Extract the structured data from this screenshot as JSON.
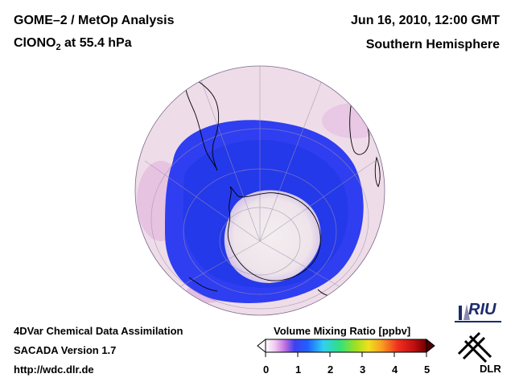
{
  "header": {
    "title_line1": "GOME–2 / MetOp Analysis",
    "species_prefix": "ClONO",
    "species_sub": "2",
    "species_suffix": " at 55.4 hPa",
    "datetime": "Jun 16, 2010, 12:00 GMT",
    "region": "Southern Hemisphere"
  },
  "footer": {
    "line1": "4DVar Chemical Data Assimilation",
    "line2": "SACADA Version 1.7",
    "line3": "http://wdc.dlr.de"
  },
  "colorbar": {
    "title": "Volume Mixing Ratio [ppbv]",
    "ticks": [
      "0",
      "1",
      "2",
      "3",
      "4",
      "5"
    ],
    "range": [
      0,
      5
    ]
  },
  "logos": {
    "riu": "RIU",
    "dlr": "DLR"
  },
  "colors": {
    "low_ring": "#2b3df2",
    "background_field": "#f0dde8",
    "pink_patch": "#e6a8dc"
  }
}
